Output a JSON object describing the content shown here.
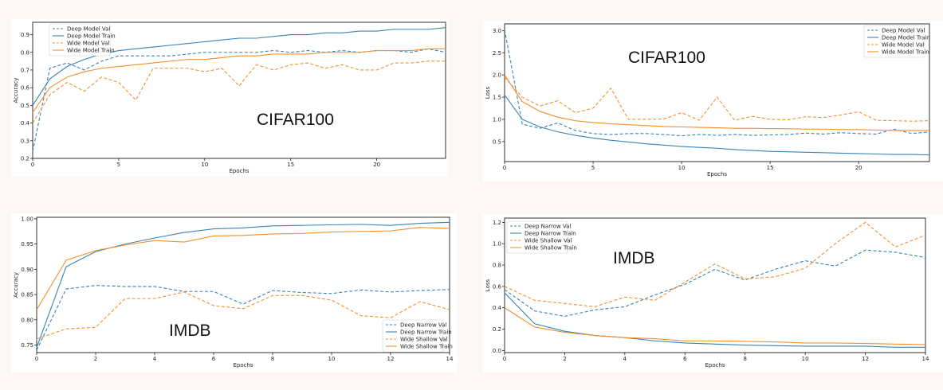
{
  "colors": {
    "deep": "#3a82b5",
    "wide": "#f0902f"
  },
  "chart_data": [
    {
      "type": "line",
      "overlay_label": "CIFAR100",
      "xlabel": "Epochs",
      "ylabel": "Accuracy",
      "xlim": [
        0,
        24
      ],
      "ylim": [
        0.2,
        0.97
      ],
      "xticks": [
        0,
        5,
        10,
        15,
        20
      ],
      "yticks": [
        0.2,
        0.3,
        0.4,
        0.5,
        0.6,
        0.7,
        0.8,
        0.9
      ],
      "grid": false,
      "legend_position": "top-left",
      "x": [
        0,
        1,
        2,
        3,
        4,
        5,
        6,
        7,
        8,
        9,
        10,
        11,
        12,
        13,
        14,
        15,
        16,
        17,
        18,
        19,
        20,
        21,
        22,
        23,
        24
      ],
      "series": [
        {
          "name": "Deep Model Val",
          "color": "deep",
          "dashed": true,
          "values": [
            0.24,
            0.71,
            0.74,
            0.7,
            0.75,
            0.78,
            0.78,
            0.78,
            0.78,
            0.79,
            0.8,
            0.8,
            0.8,
            0.8,
            0.81,
            0.8,
            0.81,
            0.8,
            0.81,
            0.8,
            0.81,
            0.81,
            0.8,
            0.82,
            0.8
          ]
        },
        {
          "name": "Deep Model Train",
          "color": "deep",
          "dashed": false,
          "values": [
            0.5,
            0.65,
            0.72,
            0.76,
            0.79,
            0.81,
            0.82,
            0.83,
            0.84,
            0.85,
            0.86,
            0.87,
            0.88,
            0.88,
            0.89,
            0.9,
            0.9,
            0.91,
            0.91,
            0.92,
            0.92,
            0.93,
            0.93,
            0.93,
            0.94
          ]
        },
        {
          "name": "Wide Model Val",
          "color": "wide",
          "dashed": true,
          "values": [
            0.4,
            0.56,
            0.63,
            0.58,
            0.66,
            0.63,
            0.53,
            0.71,
            0.71,
            0.71,
            0.69,
            0.71,
            0.61,
            0.73,
            0.7,
            0.73,
            0.74,
            0.71,
            0.73,
            0.7,
            0.7,
            0.74,
            0.74,
            0.75,
            0.75
          ]
        },
        {
          "name": "Wide Model Train",
          "color": "wide",
          "dashed": false,
          "values": [
            0.46,
            0.6,
            0.66,
            0.69,
            0.71,
            0.72,
            0.73,
            0.74,
            0.75,
            0.76,
            0.76,
            0.77,
            0.78,
            0.78,
            0.79,
            0.79,
            0.79,
            0.8,
            0.8,
            0.8,
            0.81,
            0.81,
            0.81,
            0.82,
            0.82
          ]
        }
      ]
    },
    {
      "type": "line",
      "overlay_label": "CIFAR100",
      "xlabel": "Epochs",
      "ylabel": "Loss",
      "xlim": [
        0,
        24
      ],
      "ylim": [
        0.05,
        3.15
      ],
      "xticks": [
        0,
        5,
        10,
        15,
        20
      ],
      "yticks": [
        0.5,
        1.0,
        1.5,
        2.0,
        2.5,
        3.0
      ],
      "grid": false,
      "legend_position": "top-right",
      "x": [
        0,
        1,
        2,
        3,
        4,
        5,
        6,
        7,
        8,
        9,
        10,
        11,
        12,
        13,
        14,
        15,
        16,
        17,
        18,
        19,
        20,
        21,
        22,
        23,
        24
      ],
      "series": [
        {
          "name": "Deep Model Val",
          "color": "deep",
          "dashed": true,
          "values": [
            3.02,
            0.89,
            0.8,
            0.92,
            0.75,
            0.68,
            0.66,
            0.68,
            0.68,
            0.66,
            0.63,
            0.66,
            0.64,
            0.66,
            0.64,
            0.65,
            0.66,
            0.69,
            0.67,
            0.7,
            0.68,
            0.67,
            0.78,
            0.68,
            0.72
          ]
        },
        {
          "name": "Deep Model Train",
          "color": "deep",
          "dashed": false,
          "values": [
            1.55,
            1.0,
            0.83,
            0.72,
            0.64,
            0.58,
            0.53,
            0.49,
            0.45,
            0.42,
            0.39,
            0.37,
            0.35,
            0.32,
            0.3,
            0.28,
            0.27,
            0.26,
            0.25,
            0.24,
            0.23,
            0.22,
            0.21,
            0.21,
            0.2
          ]
        },
        {
          "name": "Wide Model Val",
          "color": "wide",
          "dashed": true,
          "values": [
            1.95,
            1.5,
            1.3,
            1.42,
            1.15,
            1.25,
            1.7,
            1.0,
            1.0,
            1.01,
            1.15,
            0.98,
            1.5,
            0.98,
            1.07,
            1.0,
            0.99,
            1.06,
            1.04,
            1.1,
            1.17,
            0.98,
            0.97,
            0.96,
            0.97
          ]
        },
        {
          "name": "Wide Model Train",
          "color": "wide",
          "dashed": false,
          "values": [
            2.0,
            1.4,
            1.18,
            1.05,
            0.97,
            0.93,
            0.9,
            0.88,
            0.86,
            0.84,
            0.83,
            0.82,
            0.81,
            0.8,
            0.8,
            0.79,
            0.79,
            0.78,
            0.78,
            0.77,
            0.77,
            0.76,
            0.75,
            0.75,
            0.75
          ]
        }
      ]
    },
    {
      "type": "line",
      "overlay_label": "IMDB",
      "xlabel": "Epochs",
      "ylabel": "Accuracy",
      "xlim": [
        0,
        14
      ],
      "ylim": [
        0.735,
        1.003
      ],
      "xticks": [
        0,
        2,
        4,
        6,
        8,
        10,
        12,
        14
      ],
      "yticks": [
        0.75,
        0.8,
        0.85,
        0.9,
        0.95,
        1.0
      ],
      "grid": false,
      "legend_position": "bottom-right",
      "x": [
        0,
        1,
        2,
        3,
        4,
        5,
        6,
        7,
        8,
        9,
        10,
        11,
        12,
        13,
        14
      ],
      "series": [
        {
          "name": "Deep Narrow Val",
          "color": "deep",
          "dashed": true,
          "values": [
            0.74,
            0.861,
            0.868,
            0.866,
            0.866,
            0.856,
            0.856,
            0.831,
            0.858,
            0.854,
            0.852,
            0.859,
            0.855,
            0.858,
            0.86
          ]
        },
        {
          "name": "Deep Narrow Train",
          "color": "deep",
          "dashed": false,
          "values": [
            0.745,
            0.905,
            0.935,
            0.95,
            0.962,
            0.973,
            0.98,
            0.982,
            0.986,
            0.987,
            0.988,
            0.989,
            0.987,
            0.991,
            0.993
          ]
        },
        {
          "name": "Wide Shallow Val",
          "color": "wide",
          "dashed": true,
          "values": [
            0.762,
            0.782,
            0.785,
            0.842,
            0.842,
            0.855,
            0.828,
            0.822,
            0.848,
            0.848,
            0.839,
            0.808,
            0.804,
            0.836,
            0.82
          ]
        },
        {
          "name": "Wide Shallow Train",
          "color": "wide",
          "dashed": false,
          "values": [
            0.82,
            0.918,
            0.937,
            0.948,
            0.957,
            0.954,
            0.966,
            0.967,
            0.97,
            0.971,
            0.974,
            0.975,
            0.976,
            0.983,
            0.981
          ]
        }
      ]
    },
    {
      "type": "line",
      "overlay_label": "IMDB",
      "xlabel": "Epochs",
      "ylabel": "Loss",
      "xlim": [
        0,
        14
      ],
      "ylim": [
        -0.02,
        1.24
      ],
      "xticks": [
        0,
        2,
        4,
        6,
        8,
        10,
        12,
        14
      ],
      "yticks": [
        0.0,
        0.2,
        0.4,
        0.6,
        0.8,
        1.0,
        1.2
      ],
      "grid": false,
      "legend_position": "top-left",
      "x": [
        0,
        1,
        2,
        3,
        4,
        5,
        6,
        7,
        8,
        9,
        10,
        11,
        12,
        13,
        14
      ],
      "series": [
        {
          "name": "Deep Narrow Val",
          "color": "deep",
          "dashed": true,
          "values": [
            0.57,
            0.37,
            0.32,
            0.38,
            0.41,
            0.52,
            0.62,
            0.76,
            0.66,
            0.76,
            0.84,
            0.79,
            0.94,
            0.92,
            0.87
          ]
        },
        {
          "name": "Deep Narrow Train",
          "color": "deep",
          "dashed": false,
          "values": [
            0.54,
            0.25,
            0.18,
            0.14,
            0.12,
            0.09,
            0.07,
            0.06,
            0.05,
            0.045,
            0.04,
            0.04,
            0.04,
            0.03,
            0.03
          ]
        },
        {
          "name": "Wide Shallow Val",
          "color": "wide",
          "dashed": true,
          "values": [
            0.6,
            0.47,
            0.44,
            0.41,
            0.5,
            0.47,
            0.64,
            0.81,
            0.67,
            0.69,
            0.77,
            1.0,
            1.2,
            0.97,
            1.08
          ]
        },
        {
          "name": "Wide Shallow Train",
          "color": "wide",
          "dashed": false,
          "values": [
            0.4,
            0.22,
            0.17,
            0.14,
            0.12,
            0.11,
            0.09,
            0.09,
            0.085,
            0.08,
            0.07,
            0.07,
            0.065,
            0.06,
            0.055
          ]
        }
      ]
    }
  ]
}
